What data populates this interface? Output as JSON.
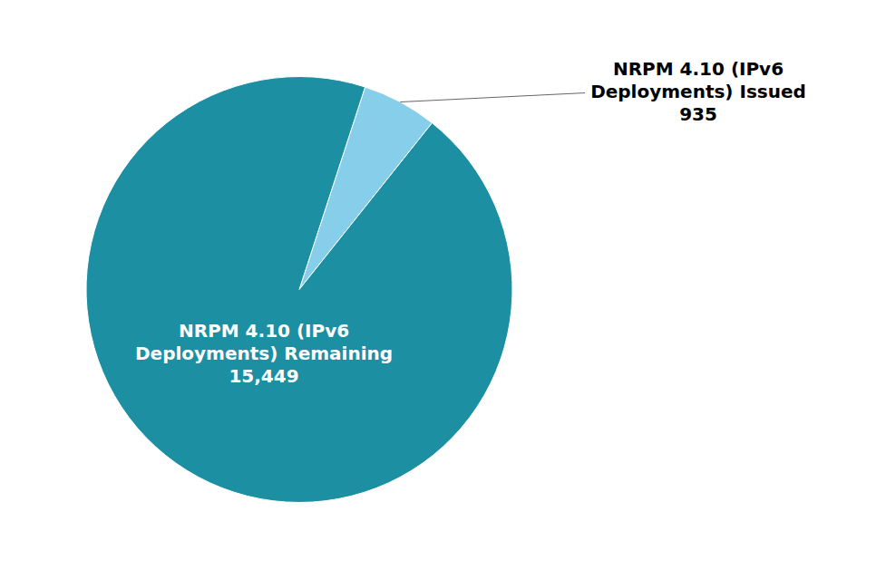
{
  "chart_data": {
    "type": "pie",
    "categories": [
      "NRPM 4.10 (IPv6\nDeployments) Issued",
      "NRPM 4.10 (IPv6\nDeployments) Remaining"
    ],
    "values": [
      935,
      15449
    ],
    "value_labels": [
      "935",
      "15,449"
    ],
    "data_labels": true,
    "colors": [
      "#87ceeb",
      "#1c8fa3"
    ]
  }
}
